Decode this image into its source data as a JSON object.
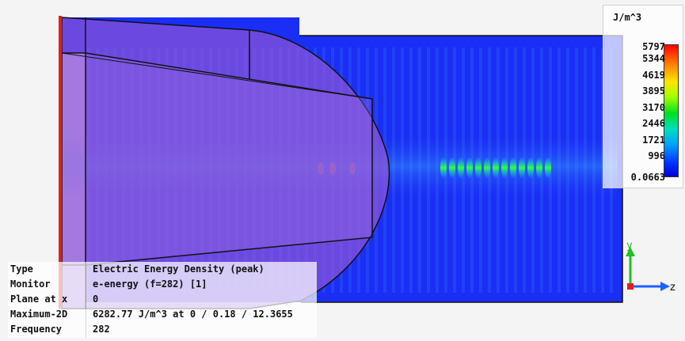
{
  "legend": {
    "unit": "J/m^3",
    "ticks": [
      "5797",
      "5344",
      "4619",
      "3895",
      "3170",
      "2446",
      "1721",
      "996",
      "0.0663"
    ]
  },
  "info": {
    "rows": [
      {
        "key": "Type",
        "value": "Electric Energy Density (peak)"
      },
      {
        "key": "Monitor",
        "value": "e-energy (f=282) [1]"
      },
      {
        "key": "Plane at x",
        "value": "0"
      },
      {
        "key": "Maximum-2D",
        "value": "6282.77 J/m^3 at 0 / 0.18 / 12.3655"
      },
      {
        "key": "Frequency",
        "value": "282"
      }
    ]
  },
  "axes": {
    "y_label": "y",
    "z_label": "z"
  },
  "colors": {
    "field_background": "#1a2ef5",
    "lens_overlay": "#8a55d8",
    "boundary_edge": "#e02020",
    "axis_y": "#22c022",
    "axis_z": "#2060ff"
  }
}
